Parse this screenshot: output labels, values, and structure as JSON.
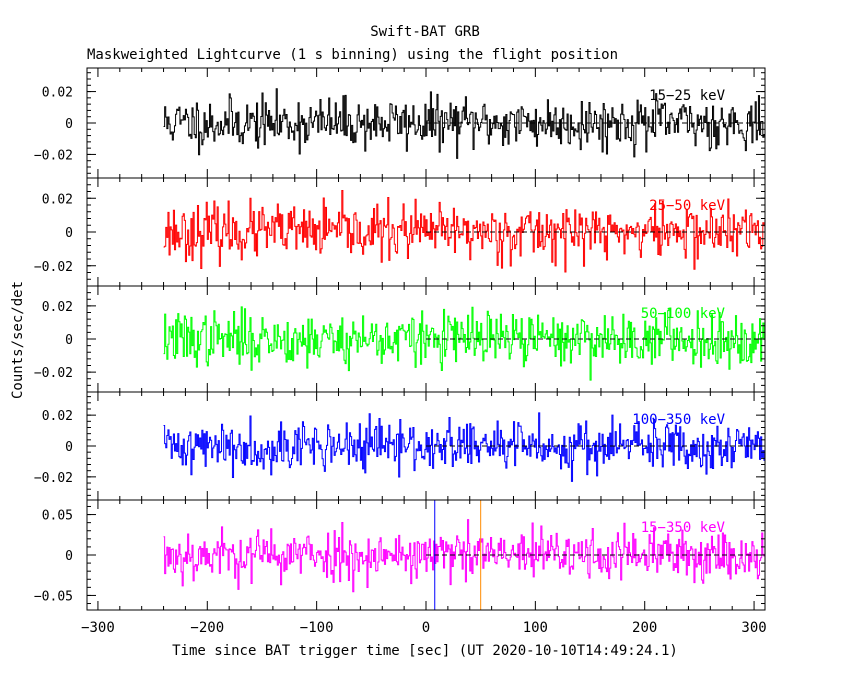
{
  "chart_data": {
    "type": "line",
    "title": "Swift-BAT GRB",
    "subtitle": "Maskweighted Lightcurve (1 s binning) using the flight position",
    "xlabel": "Time since BAT trigger time [sec] (UT 2020-10-10T14:49:24.1)",
    "ylabel": "Counts/sec/det",
    "xlim": [
      -310,
      310
    ],
    "x_ticks": [
      "−300",
      "−200",
      "−100",
      "0",
      "100",
      "200",
      "300"
    ],
    "data_range_x": [
      -240,
      310
    ],
    "binning_sec": 1,
    "marker_line": {
      "x": 50,
      "color": "#ff8c00"
    },
    "panels": [
      {
        "name": "15−25 keV",
        "color": "#000000",
        "ylim": [
          -0.035,
          0.035
        ],
        "y_ticks": [
          "0.02",
          "0",
          "−0.02"
        ],
        "y_tick_values": [
          0.02,
          0,
          -0.02
        ],
        "noise_sigma": 0.008,
        "seed": 11
      },
      {
        "name": "25−50 keV",
        "color": "#ff0000",
        "ylim": [
          -0.032,
          0.032
        ],
        "y_ticks": [
          "0.02",
          "0",
          "−0.02"
        ],
        "y_tick_values": [
          0.02,
          0,
          -0.02
        ],
        "noise_sigma": 0.008,
        "seed": 23
      },
      {
        "name": "50−100 keV",
        "color": "#00ff00",
        "ylim": [
          -0.032,
          0.032
        ],
        "y_ticks": [
          "0.02",
          "0",
          "−0.02"
        ],
        "y_tick_values": [
          0.02,
          0,
          -0.02
        ],
        "noise_sigma": 0.008,
        "seed": 37
      },
      {
        "name": "100−350 keV",
        "color": "#0000ff",
        "ylim": [
          -0.035,
          0.035
        ],
        "y_ticks": [
          "0.02",
          "0",
          "−0.02"
        ],
        "y_tick_values": [
          0.02,
          0,
          -0.02
        ],
        "noise_sigma": 0.008,
        "seed": 41
      },
      {
        "name": "15−350 keV",
        "color": "#ff00ff",
        "ylim": [
          -0.068,
          0.068
        ],
        "y_ticks": [
          "0.05",
          "0",
          "−0.05"
        ],
        "y_tick_values": [
          0.05,
          0,
          -0.05
        ],
        "noise_sigma": 0.016,
        "seed": 53
      }
    ]
  }
}
